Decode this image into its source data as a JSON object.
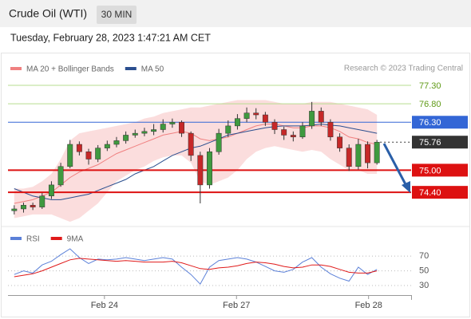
{
  "header": {
    "title": "Crude Oil (WTI)",
    "interval": "30 MIN",
    "timestamp": "Tuesday, February 28, 2023 1:47:21 AM CET",
    "credit": "Research © 2023 Trading Central"
  },
  "chart_data": [
    {
      "type": "candlestick",
      "up_color": "#3f9a3f",
      "down_color": "#c62828",
      "xlim": [
        -0.5,
        39.5
      ],
      "ylim": [
        73.56,
        78.1
      ],
      "open": [
        73.9,
        73.95,
        74.05,
        74.0,
        74.3,
        74.6,
        75.1,
        75.7,
        75.5,
        75.3,
        75.6,
        75.7,
        75.8,
        75.95,
        76.0,
        76.05,
        76.1,
        76.25,
        76.3,
        76.0,
        75.4,
        74.6,
        75.5,
        76.0,
        76.2,
        76.4,
        76.55,
        76.5,
        76.3,
        76.1,
        75.95,
        75.9,
        76.2,
        76.6,
        76.3,
        75.9,
        75.6,
        75.1,
        75.7,
        75.2
      ],
      "high": [
        74.05,
        74.12,
        74.12,
        74.38,
        74.7,
        75.2,
        75.82,
        75.78,
        75.58,
        75.68,
        75.8,
        75.9,
        76.05,
        76.1,
        76.15,
        76.25,
        76.38,
        76.4,
        76.35,
        76.05,
        75.5,
        75.6,
        76.12,
        76.35,
        76.52,
        76.7,
        76.68,
        76.58,
        76.38,
        76.18,
        76.05,
        76.3,
        76.85,
        76.7,
        76.38,
        76.0,
        75.7,
        75.85,
        75.78,
        75.82
      ],
      "low": [
        73.8,
        73.85,
        73.92,
        73.95,
        74.22,
        74.55,
        75.05,
        75.4,
        75.15,
        75.22,
        75.52,
        75.62,
        75.72,
        75.88,
        75.92,
        75.95,
        76.02,
        76.15,
        75.9,
        75.25,
        74.1,
        74.5,
        75.42,
        75.9,
        76.1,
        76.3,
        76.38,
        76.2,
        75.98,
        75.82,
        75.78,
        75.85,
        76.12,
        76.2,
        75.8,
        75.5,
        74.98,
        75.02,
        75.05,
        75.15
      ],
      "close": [
        73.95,
        74.05,
        74.0,
        74.3,
        74.6,
        75.1,
        75.7,
        75.5,
        75.3,
        75.6,
        75.7,
        75.8,
        75.95,
        76.0,
        76.05,
        76.1,
        76.25,
        76.3,
        76.0,
        75.4,
        74.6,
        75.5,
        76.0,
        76.2,
        76.4,
        76.55,
        76.5,
        76.3,
        76.1,
        75.95,
        75.9,
        76.2,
        76.6,
        76.3,
        75.9,
        75.6,
        75.1,
        75.7,
        75.2,
        75.76
      ],
      "series": [
        {
          "name": "MA 20 + Bollinger Bands",
          "color": "#f08080",
          "band_color": "#fbd9d9",
          "values": [
            74.1,
            74.15,
            74.2,
            74.3,
            74.4,
            74.6,
            74.8,
            74.95,
            75.05,
            75.15,
            75.3,
            75.45,
            75.55,
            75.65,
            75.75,
            75.85,
            75.95,
            76.0,
            76.05,
            76.0,
            75.85,
            75.8,
            75.85,
            75.9,
            76.0,
            76.1,
            76.2,
            76.25,
            76.25,
            76.2,
            76.15,
            76.15,
            76.2,
            76.2,
            76.15,
            76.05,
            75.9,
            75.85,
            75.75,
            75.7
          ],
          "upper": [
            74.5,
            74.5,
            74.55,
            74.7,
            74.9,
            75.3,
            75.8,
            76.0,
            76.05,
            76.1,
            76.15,
            76.2,
            76.25,
            76.3,
            76.4,
            76.45,
            76.55,
            76.6,
            76.65,
            76.7,
            76.7,
            76.75,
            76.8,
            76.85,
            76.9,
            76.9,
            76.9,
            76.9,
            76.85,
            76.8,
            76.8,
            76.8,
            76.85,
            76.85,
            76.85,
            76.8,
            76.75,
            76.7,
            76.65,
            76.5
          ],
          "lower": [
            73.7,
            73.75,
            73.8,
            73.8,
            73.8,
            73.7,
            73.6,
            73.7,
            73.9,
            74.1,
            74.4,
            74.7,
            74.85,
            75.0,
            75.1,
            75.25,
            75.35,
            75.4,
            75.4,
            75.2,
            74.7,
            74.6,
            74.7,
            74.8,
            75.0,
            75.3,
            75.5,
            75.6,
            75.65,
            75.6,
            75.55,
            75.5,
            75.55,
            75.5,
            75.3,
            75.15,
            75.0,
            75.0,
            74.9,
            74.9
          ]
        },
        {
          "name": "MA 50",
          "color": "#2b4f8f",
          "values": [
            74.5,
            74.4,
            74.3,
            74.25,
            74.2,
            74.2,
            74.25,
            74.3,
            74.35,
            74.45,
            74.55,
            74.65,
            74.75,
            74.9,
            75.0,
            75.1,
            75.25,
            75.4,
            75.5,
            75.6,
            75.65,
            75.75,
            75.85,
            75.95,
            76.0,
            76.05,
            76.1,
            76.15,
            76.18,
            76.2,
            76.2,
            76.2,
            76.22,
            76.25,
            76.22,
            76.2,
            76.15,
            76.1,
            76.05,
            76.0
          ]
        }
      ],
      "levels": [
        {
          "value": 77.3,
          "label": "77.30",
          "color": "#b7dd8f",
          "text_color": "#5f9a16",
          "style": "plain"
        },
        {
          "value": 76.8,
          "label": "76.80",
          "color": "#b7dd8f",
          "text_color": "#5f9a16",
          "style": "plain"
        },
        {
          "value": 76.3,
          "label": "76.30",
          "color": "#3366d6",
          "text_color": "#ffffff",
          "style": "box"
        },
        {
          "value": 75.0,
          "label": "75.00",
          "color": "#dd1111",
          "text_color": "#ffffff",
          "style": "box-thick"
        },
        {
          "value": 74.4,
          "label": "74.40",
          "color": "#dd1111",
          "text_color": "#ffffff",
          "style": "box-thick"
        }
      ],
      "last_price": {
        "value": 75.76,
        "label": "75.76",
        "color": "#333333"
      }
    },
    {
      "type": "line",
      "xlim": [
        -0.5,
        39.5
      ],
      "ylim": [
        17,
        93
      ],
      "yticks": [
        70,
        50,
        30
      ],
      "xticks": [
        {
          "value": 9.7,
          "label": "Feb 24"
        },
        {
          "value": 23.9,
          "label": "Feb 27"
        },
        {
          "value": 38.1,
          "label": "Feb 28"
        }
      ],
      "series": [
        {
          "name": "RSI",
          "color": "#5b80d8",
          "values": [
            45,
            50,
            47,
            58,
            63,
            72,
            80,
            68,
            60,
            66,
            65,
            66,
            68,
            66,
            64,
            66,
            68,
            66,
            55,
            45,
            32,
            55,
            64,
            66,
            68,
            66,
            62,
            56,
            50,
            48,
            52,
            62,
            68,
            55,
            46,
            40,
            36,
            55,
            45,
            52
          ]
        },
        {
          "name": "9MA",
          "color": "#e01a1a",
          "values": [
            42,
            44,
            46,
            50,
            55,
            60,
            65,
            67,
            66,
            65,
            64,
            63,
            64,
            63,
            62,
            62,
            62,
            63,
            61,
            57,
            53,
            52,
            54,
            55,
            57,
            60,
            62,
            61,
            59,
            56,
            54,
            55,
            58,
            58,
            56,
            52,
            48,
            47,
            47,
            50
          ]
        }
      ]
    }
  ]
}
